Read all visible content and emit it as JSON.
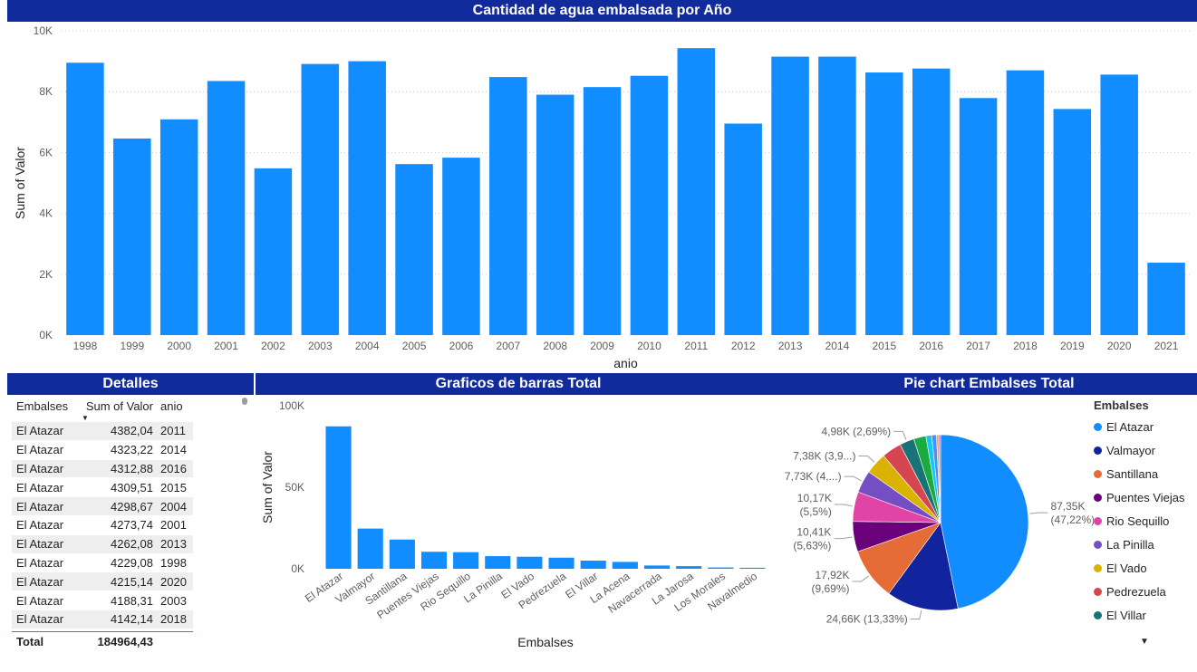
{
  "titles": {
    "top": "Cantidad de agua embalsada por Año",
    "detalles": "Detalles",
    "bars": "Graficos de barras Total",
    "pie": "Pie chart Embalses Total"
  },
  "table": {
    "headers": [
      "Embalses",
      "Sum of Valor",
      "anio"
    ],
    "sort_indicator": "▼",
    "rows": [
      [
        "El Atazar",
        "4382,04",
        "2011"
      ],
      [
        "El Atazar",
        "4323,22",
        "2014"
      ],
      [
        "El Atazar",
        "4312,88",
        "2016"
      ],
      [
        "El Atazar",
        "4309,51",
        "2015"
      ],
      [
        "El Atazar",
        "4298,67",
        "2004"
      ],
      [
        "El Atazar",
        "4273,74",
        "2001"
      ],
      [
        "El Atazar",
        "4262,08",
        "2013"
      ],
      [
        "El Atazar",
        "4229,08",
        "1998"
      ],
      [
        "El Atazar",
        "4215,14",
        "2020"
      ],
      [
        "El Atazar",
        "4188,31",
        "2003"
      ],
      [
        "El Atazar",
        "4142,14",
        "2018"
      ]
    ],
    "total_label": "Total",
    "total_value": "184964,43"
  },
  "legend": {
    "title": "Embalses",
    "more_glyph": "▼"
  },
  "chart_data": [
    {
      "type": "bar",
      "title": "Cantidad de agua embalsada por Año",
      "xlabel": "anio",
      "ylabel": "Sum of Valor",
      "ylim": [
        0,
        10000
      ],
      "yticks": [
        "0K",
        "2K",
        "4K",
        "6K",
        "8K",
        "10K"
      ],
      "grid": true,
      "color": "#118dff",
      "categories": [
        "1998",
        "1999",
        "2000",
        "2001",
        "2002",
        "2003",
        "2004",
        "2005",
        "2006",
        "2007",
        "2008",
        "2009",
        "2010",
        "2011",
        "2012",
        "2013",
        "2014",
        "2015",
        "2016",
        "2017",
        "2018",
        "2019",
        "2020",
        "2021"
      ],
      "values": [
        8950,
        6460,
        7090,
        8350,
        5480,
        8910,
        9000,
        5620,
        5830,
        8480,
        7900,
        8150,
        8520,
        9430,
        6950,
        9150,
        9150,
        8630,
        8760,
        7790,
        8700,
        7430,
        8560,
        2380
      ]
    },
    {
      "type": "bar",
      "title": "Graficos de barras Total",
      "xlabel": "Embalses",
      "ylabel": "Sum of Valor",
      "ylim": [
        0,
        100000
      ],
      "yticks": [
        "0K",
        "50K",
        "100K"
      ],
      "color": "#118dff",
      "categories": [
        "El Atazar",
        "Valmayor",
        "Santillana",
        "Puentes Viejas",
        "Rio Sequillo",
        "La Pinilla",
        "El Vado",
        "Pedrezuela",
        "El Villar",
        "La Acena",
        "Navacerrada",
        "La Jarosa",
        "Los Morales",
        "Navalmedio"
      ],
      "values": [
        87350,
        24660,
        17920,
        10410,
        10170,
        7730,
        7380,
        6800,
        4980,
        4200,
        2000,
        1600,
        800,
        600
      ]
    },
    {
      "type": "pie",
      "title": "Pie chart Embalses Total",
      "legend_title": "Embalses",
      "legend_position": "right",
      "slices": [
        {
          "name": "El Atazar",
          "value": 87350,
          "color": "#118dff",
          "label": [
            "87,35K",
            "(47,22%)"
          ]
        },
        {
          "name": "Valmayor",
          "value": 24660,
          "color": "#12239e",
          "label": [
            "24,66K (13,33%)"
          ]
        },
        {
          "name": "Santillana",
          "value": 17920,
          "color": "#e66c37",
          "label": [
            "17,92K",
            "(9,69%)"
          ]
        },
        {
          "name": "Puentes Viejas",
          "value": 10410,
          "color": "#6b007b",
          "label": [
            "10,41K",
            "(5,63%)"
          ]
        },
        {
          "name": "Rio Sequillo",
          "value": 10170,
          "color": "#e044a7",
          "label": [
            "10,17K",
            "(5,5%)"
          ]
        },
        {
          "name": "La Pinilla",
          "value": 7730,
          "color": "#744ec2",
          "label": [
            "7,73K (4,...)"
          ]
        },
        {
          "name": "El Vado",
          "value": 7380,
          "color": "#d9b300",
          "label": [
            "7,38K (3,9...)"
          ]
        },
        {
          "name": "Pedrezuela",
          "value": 6800,
          "color": "#d64550",
          "label": []
        },
        {
          "name": "El Villar",
          "value": 4980,
          "color": "#197278",
          "label": [
            "4,98K (2,69%)"
          ]
        },
        {
          "name": "La Acena",
          "value": 4200,
          "color": "#1aab40",
          "label": []
        },
        {
          "name": "Navacerrada",
          "value": 2000,
          "color": "#15c6f4",
          "label": []
        },
        {
          "name": "La Jarosa",
          "value": 1600,
          "color": "#4092ff",
          "label": []
        },
        {
          "name": "Los Morales",
          "value": 800,
          "color": "#ffa058",
          "label": []
        },
        {
          "name": "Navalmedio",
          "value": 600,
          "color": "#be5dc9",
          "label": []
        }
      ],
      "legend_visible": [
        "El Atazar",
        "Valmayor",
        "Santillana",
        "Puentes Viejas",
        "Rio Sequillo",
        "La Pinilla",
        "El Vado",
        "Pedrezuela",
        "El Villar"
      ]
    }
  ]
}
